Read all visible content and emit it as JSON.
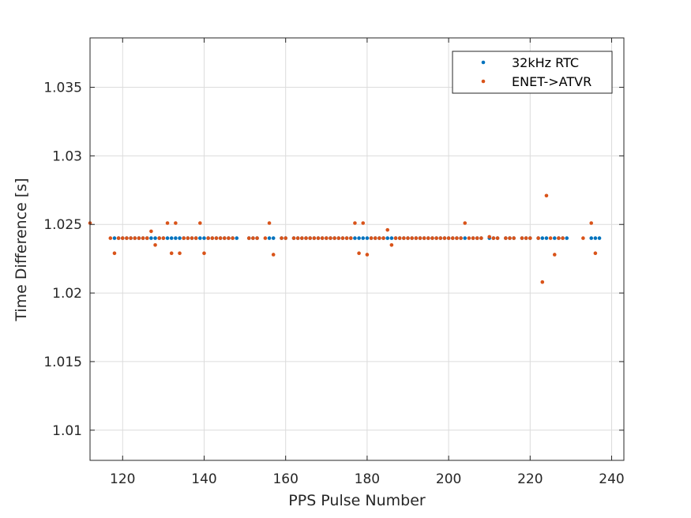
{
  "chart_data": {
    "type": "scatter",
    "xlabel": "PPS Pulse Number",
    "ylabel": "Time Difference [s]",
    "xlim": [
      112,
      243
    ],
    "ylim": [
      1.0078,
      1.0386
    ],
    "xticks": [
      120,
      140,
      160,
      180,
      200,
      220,
      240
    ],
    "yticks": [
      1.01,
      1.015,
      1.02,
      1.025,
      1.03,
      1.035
    ],
    "xtick_labels": [
      "120",
      "140",
      "160",
      "180",
      "200",
      "220",
      "240"
    ],
    "ytick_labels": [
      "1.01",
      "1.015",
      "1.02",
      "1.025",
      "1.03",
      "1.035"
    ],
    "grid": true,
    "legend_position": "top-right",
    "series": [
      {
        "name": "32kHz RTC",
        "color": "#0072BD",
        "x": [
          118,
          119,
          120,
          121,
          122,
          123,
          124,
          125,
          126,
          127,
          128,
          129,
          130,
          131,
          132,
          133,
          134,
          135,
          136,
          137,
          138,
          139,
          140,
          141,
          142,
          143,
          144,
          145,
          146,
          147,
          148,
          151,
          152,
          153,
          156,
          157,
          159,
          160,
          162,
          163,
          164,
          165,
          166,
          167,
          168,
          169,
          170,
          171,
          172,
          173,
          174,
          175,
          176,
          177,
          178,
          179,
          180,
          181,
          182,
          183,
          184,
          185,
          186,
          187,
          188,
          189,
          190,
          191,
          192,
          193,
          194,
          195,
          196,
          197,
          198,
          199,
          200,
          201,
          202,
          203,
          204,
          206,
          207,
          208,
          210,
          211,
          212,
          214,
          215,
          216,
          218,
          219,
          220,
          222,
          223,
          224,
          226,
          227,
          228,
          229,
          235,
          236,
          237
        ],
        "y": [
          1.024,
          1.024,
          1.024,
          1.024,
          1.024,
          1.024,
          1.024,
          1.024,
          1.024,
          1.024,
          1.024,
          1.024,
          1.024,
          1.024,
          1.024,
          1.024,
          1.024,
          1.024,
          1.024,
          1.024,
          1.024,
          1.024,
          1.024,
          1.024,
          1.024,
          1.024,
          1.024,
          1.024,
          1.024,
          1.024,
          1.024,
          1.024,
          1.024,
          1.024,
          1.024,
          1.024,
          1.024,
          1.024,
          1.024,
          1.024,
          1.024,
          1.024,
          1.024,
          1.024,
          1.024,
          1.024,
          1.024,
          1.024,
          1.024,
          1.024,
          1.024,
          1.024,
          1.024,
          1.024,
          1.024,
          1.024,
          1.024,
          1.024,
          1.024,
          1.024,
          1.024,
          1.024,
          1.024,
          1.024,
          1.024,
          1.024,
          1.024,
          1.024,
          1.024,
          1.024,
          1.024,
          1.024,
          1.024,
          1.024,
          1.024,
          1.024,
          1.024,
          1.024,
          1.024,
          1.024,
          1.024,
          1.024,
          1.024,
          1.024,
          1.024,
          1.024,
          1.024,
          1.024,
          1.024,
          1.024,
          1.024,
          1.024,
          1.024,
          1.024,
          1.024,
          1.024,
          1.024,
          1.024,
          1.024,
          1.024,
          1.024,
          1.024,
          1.024
        ]
      },
      {
        "name": "ENET->ATVR",
        "color": "#D95319",
        "x": [
          112,
          117,
          118,
          119,
          120,
          121,
          122,
          123,
          124,
          125,
          126,
          127,
          128,
          129,
          130,
          131,
          132,
          133,
          134,
          135,
          136,
          137,
          138,
          139,
          140,
          141,
          142,
          143,
          144,
          145,
          146,
          147,
          151,
          152,
          153,
          155,
          156,
          157,
          159,
          160,
          162,
          163,
          164,
          165,
          166,
          167,
          168,
          169,
          170,
          171,
          172,
          173,
          174,
          175,
          176,
          177,
          178,
          179,
          180,
          181,
          182,
          183,
          184,
          185,
          186,
          187,
          188,
          189,
          190,
          191,
          192,
          193,
          194,
          195,
          196,
          197,
          198,
          199,
          200,
          201,
          202,
          203,
          204,
          205,
          206,
          207,
          208,
          210,
          211,
          212,
          214,
          215,
          216,
          218,
          219,
          220,
          222,
          223,
          224,
          225,
          226,
          227,
          228,
          233,
          235,
          236
        ],
        "y": [
          1.0251,
          1.024,
          1.0229,
          1.024,
          1.024,
          1.024,
          1.024,
          1.024,
          1.024,
          1.024,
          1.024,
          1.0245,
          1.0235,
          1.024,
          1.024,
          1.0251,
          1.0229,
          1.0251,
          1.0229,
          1.024,
          1.024,
          1.024,
          1.024,
          1.0251,
          1.0229,
          1.024,
          1.024,
          1.024,
          1.024,
          1.024,
          1.024,
          1.024,
          1.024,
          1.024,
          1.024,
          1.024,
          1.0251,
          1.0228,
          1.024,
          1.024,
          1.024,
          1.024,
          1.024,
          1.024,
          1.024,
          1.024,
          1.024,
          1.024,
          1.024,
          1.024,
          1.024,
          1.024,
          1.024,
          1.024,
          1.024,
          1.0251,
          1.0229,
          1.0251,
          1.0228,
          1.024,
          1.024,
          1.024,
          1.024,
          1.0246,
          1.0235,
          1.024,
          1.024,
          1.024,
          1.024,
          1.024,
          1.024,
          1.024,
          1.024,
          1.024,
          1.024,
          1.024,
          1.024,
          1.024,
          1.024,
          1.024,
          1.024,
          1.024,
          1.0251,
          1.024,
          1.024,
          1.024,
          1.024,
          1.0241,
          1.024,
          1.024,
          1.024,
          1.024,
          1.024,
          1.024,
          1.024,
          1.024,
          1.024,
          1.0208,
          1.0271,
          1.024,
          1.0228,
          1.024,
          1.024,
          1.024,
          1.0251,
          1.0229
        ]
      }
    ]
  }
}
